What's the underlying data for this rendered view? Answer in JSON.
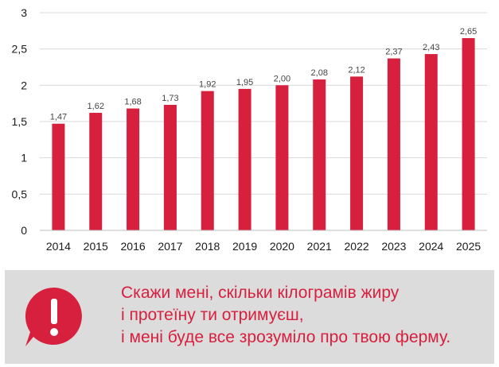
{
  "chart_data": {
    "type": "bar",
    "categories": [
      "2014",
      "2015",
      "2016",
      "2017",
      "2018",
      "2019",
      "2020",
      "2021",
      "2022",
      "2023",
      "2024",
      "2025"
    ],
    "values": [
      1.47,
      1.62,
      1.68,
      1.73,
      1.92,
      1.95,
      2.0,
      2.08,
      2.12,
      2.37,
      2.43,
      2.65
    ],
    "value_labels": [
      "1,47",
      "1,62",
      "1,68",
      "1,73",
      "1,92",
      "1,95",
      "2,00",
      "2,08",
      "2,12",
      "2,37",
      "2,43",
      "2,65"
    ],
    "y_ticks": [
      0,
      0.5,
      1,
      1.5,
      2,
      2.5,
      3
    ],
    "y_tick_labels": [
      "0",
      "0,5",
      "1",
      "1,5",
      "2",
      "2,5",
      "3"
    ],
    "ylim": [
      0,
      3
    ],
    "title": "",
    "xlabel": "",
    "ylabel": "",
    "grid": true,
    "bar_color": "#d71f3e",
    "grid_color": "#d9d9d9"
  },
  "callout": {
    "lines": [
      "Скажи мені, скільки кілограмів жиру",
      "і протеїну ти отримуєш,",
      "і мені буде все зрозуміло про твою ферму."
    ],
    "icon": "exclamation-speech-bubble-icon",
    "text_color": "#d71f3e",
    "background": "#dcdcdc"
  }
}
